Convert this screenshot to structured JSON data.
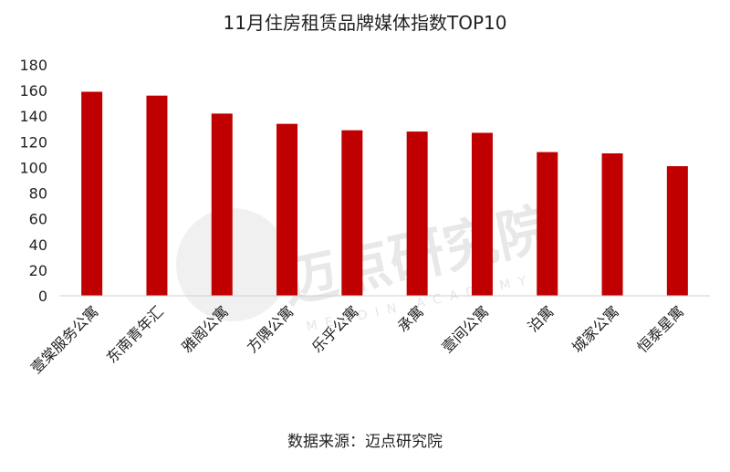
{
  "chart_data": {
    "type": "bar",
    "title": "11月住房租赁品牌媒体指数TOP10",
    "categories": [
      "壹棠服务公寓",
      "东南青年汇",
      "雅阁公寓",
      "方隅公寓",
      "乐乎公寓",
      "承寓",
      "壹间公寓",
      "泊寓",
      "城家公寓",
      "恒泰星寓"
    ],
    "values": [
      159,
      156,
      142,
      134,
      129,
      128,
      127,
      112,
      111,
      101
    ],
    "ylim": [
      0,
      180
    ],
    "yticks": [
      0,
      20,
      40,
      60,
      80,
      100,
      120,
      140,
      160,
      180
    ],
    "bar_color": "#c00000",
    "grid": false,
    "source": "数据来源：迈点研究院"
  },
  "watermark": {
    "brand": "迈点研究院",
    "subtitle": "MEADIN ACADEMY"
  }
}
